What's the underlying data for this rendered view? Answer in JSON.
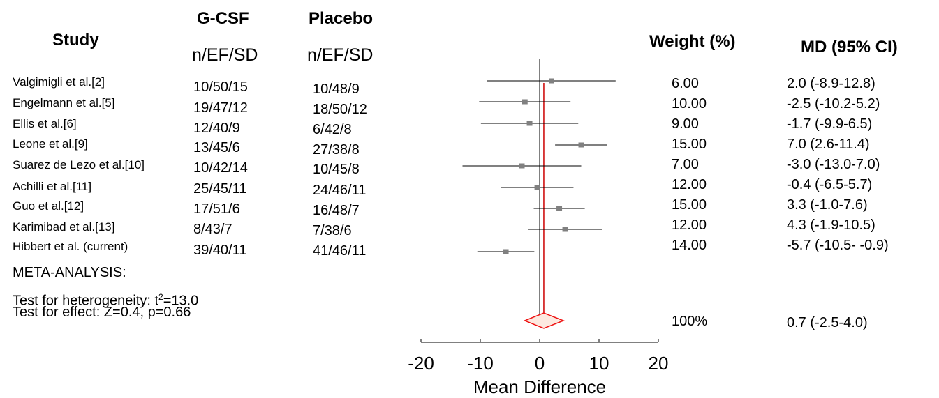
{
  "headers": {
    "study": "Study",
    "gcsf": "G-CSF",
    "placebo": "Placebo",
    "gcsf_sub": "n/EF/SD",
    "placebo_sub": "n/EF/SD",
    "weight": "Weight (%)",
    "md": "MD (95% CI)"
  },
  "rows": [
    {
      "study": "Valgimigli et al.[2]",
      "gcsf": "10/50/15",
      "placebo": "10/48/9",
      "weight": "6.00",
      "md": "2.0 (-8.9-12.8)"
    },
    {
      "study": "Engelmann et al.[5]",
      "gcsf": "19/47/12",
      "placebo": "18/50/12",
      "weight": "10.00",
      "md": "-2.5 (-10.2-5.2)"
    },
    {
      "study": "Ellis et al.[6]",
      "gcsf": "12/40/9",
      "placebo": "6/42/8",
      "weight": "9.00",
      "md": "-1.7 (-9.9-6.5)"
    },
    {
      "study": "Leone et al.[9]",
      "gcsf": "13/45/6",
      "placebo": "27/38/8",
      "weight": "15.00",
      "md": "7.0 (2.6-11.4)"
    },
    {
      "study": "Suarez de Lezo et al.[10]",
      "gcsf": "10/42/14",
      "placebo": "10/45/8",
      "weight": "7.00",
      "md": "-3.0 (-13.0-7.0)"
    },
    {
      "study": "Achilli et al.[11]",
      "gcsf": "25/45/11",
      "placebo": "24/46/11",
      "weight": "12.00",
      "md": "-0.4 (-6.5-5.7)"
    },
    {
      "study": "Guo et al.[12]",
      "gcsf": "17/51/6",
      "placebo": "16/48/7",
      "weight": "15.00",
      "md": "3.3 (-1.0-7.6)"
    },
    {
      "study": "Karimibad et al.[13]",
      "gcsf": "8/43/7",
      "placebo": "7/38/6",
      "weight": "12.00",
      "md": "4.3 (-1.9-10.5)"
    },
    {
      "study": "Hibbert et al. (current)",
      "gcsf": "39/40/11",
      "placebo": "41/46/11",
      "weight": "14.00",
      "md": "-5.7 (-10.5- -0.9)"
    }
  ],
  "meta": {
    "label": "META-ANALYSIS:",
    "heterogeneity_prefix": "Test for heterogeneity: t",
    "heterogeneity_sup": "2",
    "heterogeneity_suffix": "=13.0",
    "effect": "Test for effect: Z=0.4, p=0.66",
    "pooled_weight": "100%",
    "pooled_md": "0.7 (-2.5-4.0)"
  },
  "chart_data": {
    "type": "forest",
    "xlabel": "Mean Difference",
    "xlim": [
      -20,
      20
    ],
    "xticks": [
      -20,
      -10,
      0,
      10,
      20
    ],
    "studies": [
      {
        "name": "Valgimigli et al.[2]",
        "md": 2.0,
        "lower": -8.9,
        "upper": 12.8,
        "weight": 6.0
      },
      {
        "name": "Engelmann et al.[5]",
        "md": -2.5,
        "lower": -10.2,
        "upper": 5.2,
        "weight": 10.0
      },
      {
        "name": "Ellis et al.[6]",
        "md": -1.7,
        "lower": -9.9,
        "upper": 6.5,
        "weight": 9.0
      },
      {
        "name": "Leone et al.[9]",
        "md": 7.0,
        "lower": 2.6,
        "upper": 11.4,
        "weight": 15.0
      },
      {
        "name": "Suarez de Lezo et al.[10]",
        "md": -3.0,
        "lower": -13.0,
        "upper": 7.0,
        "weight": 7.0
      },
      {
        "name": "Achilli et al.[11]",
        "md": -0.4,
        "lower": -6.5,
        "upper": 5.7,
        "weight": 12.0
      },
      {
        "name": "Guo et al.[12]",
        "md": 3.3,
        "lower": -1.0,
        "upper": 7.6,
        "weight": 15.0
      },
      {
        "name": "Karimibad et al.[13]",
        "md": 4.3,
        "lower": -1.9,
        "upper": 10.5,
        "weight": 12.0
      },
      {
        "name": "Hibbert et al. (current)",
        "md": -5.7,
        "lower": -10.5,
        "upper": -0.9,
        "weight": 14.0
      }
    ],
    "pooled": {
      "md": 0.7,
      "lower": -2.5,
      "upper": 4.0,
      "weight": 100
    },
    "colors": {
      "marker": "#808080",
      "pooled_line": "#cc0000",
      "diamond_stroke": "#ee1111",
      "diamond_fill": "#fde9e0"
    }
  }
}
